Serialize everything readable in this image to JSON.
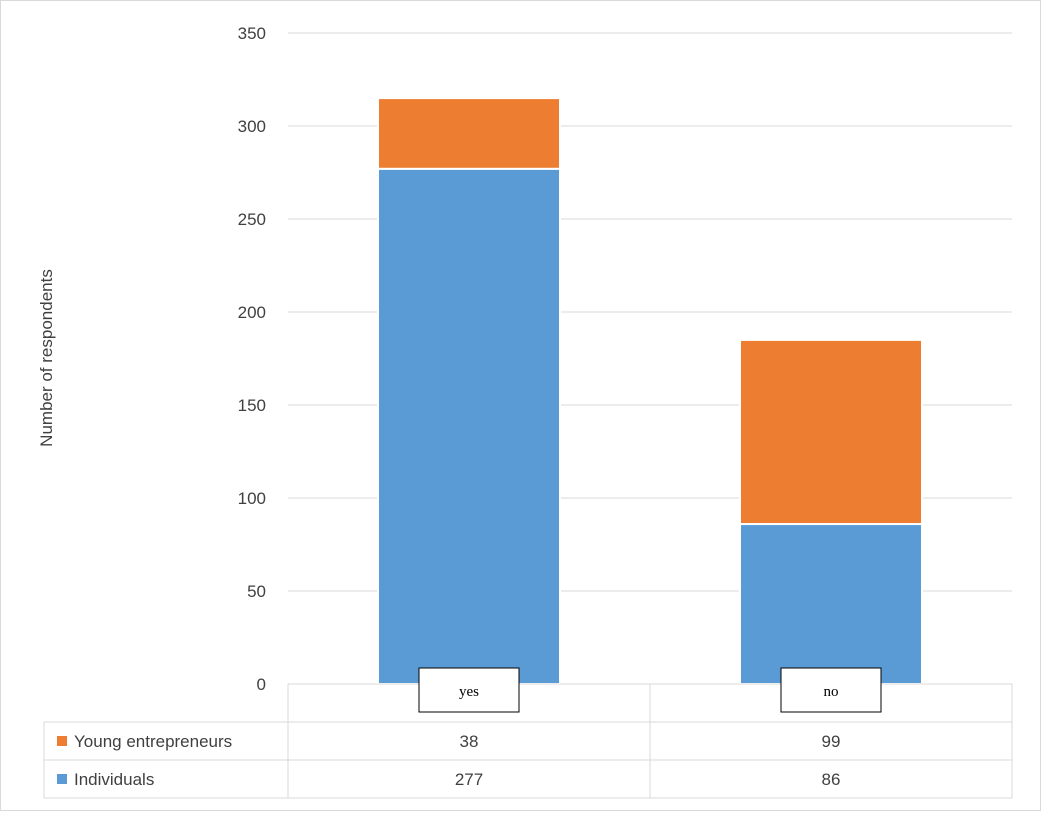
{
  "chart_data": {
    "type": "bar",
    "stacked": true,
    "categories": [
      "yes",
      "no"
    ],
    "series": [
      {
        "name": "Individuals",
        "values": [
          277,
          86
        ],
        "color": "#5B9BD5"
      },
      {
        "name": "Young entrepreneurs",
        "values": [
          38,
          99
        ],
        "color": "#ED7D31"
      }
    ],
    "ylabel": "Number of respondents",
    "ylim": [
      0,
      350
    ],
    "yticks": [
      0,
      50,
      100,
      150,
      200,
      250,
      300,
      350
    ],
    "grid": true,
    "legend": "data-table"
  }
}
